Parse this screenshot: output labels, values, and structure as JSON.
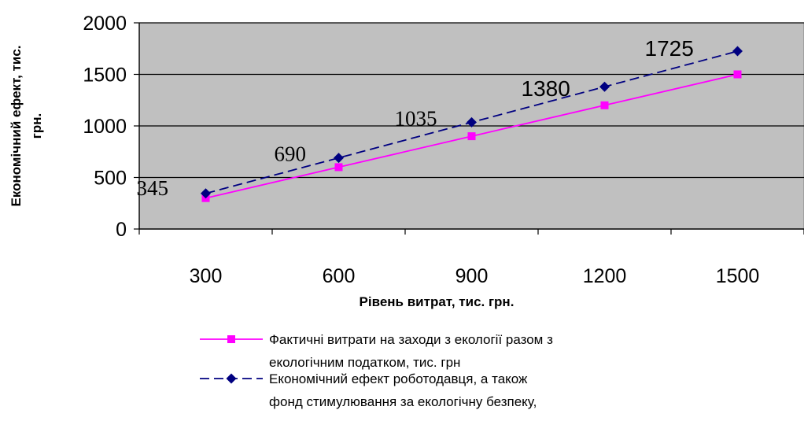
{
  "chart_data": {
    "type": "line",
    "x": [
      300,
      600,
      900,
      1200,
      1500
    ],
    "xlabel": "Рівень витрат, тис. грн.",
    "ylabel": "Економічний ефект, тис. грн.",
    "ylim": [
      0,
      2000
    ],
    "yticks": [
      0,
      500,
      1000,
      1500,
      2000
    ],
    "grid": true,
    "legend_position": "bottom",
    "series": [
      {
        "name": "Фактичні витрати на заходи з екології разом з екологічним податком, тис. грн",
        "legend_lines": [
          "Фактичні витрати на заходи з екології разом з",
          "екологічним податком, тис. грн"
        ],
        "values": [
          300,
          600,
          900,
          1200,
          1500
        ],
        "color": "#ff00ff",
        "marker": "square",
        "line": "solid"
      },
      {
        "name": "Економічний ефект роботодавця, а також фонд стимулювання за екологічну безпеку,",
        "legend_lines": [
          "Економічний ефект роботодавця, а також",
          "фонд стимулювання за екологічну безпеку,"
        ],
        "values": [
          345,
          690,
          1035,
          1380,
          1725
        ],
        "data_labels": [
          "345",
          "690",
          "1035",
          "1380",
          "1725"
        ],
        "color": "#000080",
        "marker": "diamond",
        "line": "dashed"
      }
    ],
    "plot_bg": "#c0c0c0"
  }
}
